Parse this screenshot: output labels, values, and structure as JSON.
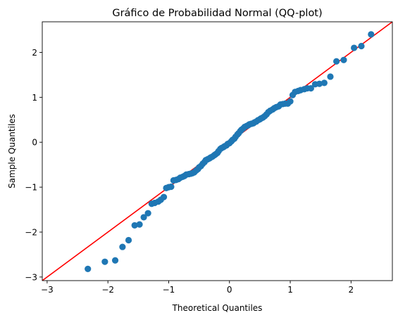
{
  "chart_data": {
    "type": "scatter",
    "title": "Gráfico de Probabilidad Normal (QQ-plot)",
    "xlabel": "Theoretical Quantiles",
    "ylabel": "Sample Quantiles",
    "xlim": [
      -3.08,
      2.68
    ],
    "ylim": [
      -3.08,
      2.68
    ],
    "xticks": [
      -3,
      -2,
      -1,
      0,
      1,
      2
    ],
    "yticks": [
      -3,
      -2,
      -1,
      0,
      1,
      2
    ],
    "grid": false,
    "series": [
      {
        "color": "#1f77b4",
        "points": [
          [
            -2.33,
            -2.82
          ],
          [
            -2.05,
            -2.66
          ],
          [
            -1.88,
            -2.63
          ],
          [
            -1.76,
            -2.33
          ],
          [
            -1.66,
            -2.18
          ],
          [
            -1.56,
            -1.85
          ],
          [
            -1.48,
            -1.83
          ],
          [
            -1.41,
            -1.67
          ],
          [
            -1.34,
            -1.58
          ],
          [
            -1.28,
            -1.37
          ],
          [
            -1.23,
            -1.35
          ],
          [
            -1.17,
            -1.32
          ],
          [
            -1.13,
            -1.28
          ],
          [
            -1.08,
            -1.22
          ],
          [
            -1.04,
            -1.02
          ],
          [
            -1.0,
            -1.0
          ],
          [
            -0.96,
            -0.99
          ],
          [
            -0.92,
            -0.85
          ],
          [
            -0.88,
            -0.84
          ],
          [
            -0.84,
            -0.82
          ],
          [
            -0.81,
            -0.79
          ],
          [
            -0.77,
            -0.77
          ],
          [
            -0.74,
            -0.75
          ],
          [
            -0.71,
            -0.72
          ],
          [
            -0.67,
            -0.71
          ],
          [
            -0.64,
            -0.7
          ],
          [
            -0.61,
            -0.69
          ],
          [
            -0.58,
            -0.67
          ],
          [
            -0.55,
            -0.63
          ],
          [
            -0.52,
            -0.6
          ],
          [
            -0.5,
            -0.56
          ],
          [
            -0.47,
            -0.53
          ],
          [
            -0.44,
            -0.48
          ],
          [
            -0.41,
            -0.44
          ],
          [
            -0.39,
            -0.4
          ],
          [
            -0.36,
            -0.38
          ],
          [
            -0.33,
            -0.36
          ],
          [
            -0.31,
            -0.34
          ],
          [
            -0.28,
            -0.32
          ],
          [
            -0.25,
            -0.29
          ],
          [
            -0.23,
            -0.27
          ],
          [
            -0.2,
            -0.24
          ],
          [
            -0.18,
            -0.2
          ],
          [
            -0.15,
            -0.15
          ],
          [
            -0.13,
            -0.13
          ],
          [
            -0.1,
            -0.11
          ],
          [
            -0.08,
            -0.09
          ],
          [
            -0.05,
            -0.07
          ],
          [
            -0.03,
            -0.04
          ],
          [
            0.0,
            -0.02
          ],
          [
            0.03,
            0.02
          ],
          [
            0.05,
            0.05
          ],
          [
            0.08,
            0.08
          ],
          [
            0.1,
            0.12
          ],
          [
            0.13,
            0.17
          ],
          [
            0.15,
            0.2
          ],
          [
            0.18,
            0.25
          ],
          [
            0.2,
            0.28
          ],
          [
            0.23,
            0.31
          ],
          [
            0.25,
            0.34
          ],
          [
            0.28,
            0.36
          ],
          [
            0.31,
            0.38
          ],
          [
            0.33,
            0.4
          ],
          [
            0.36,
            0.41
          ],
          [
            0.39,
            0.42
          ],
          [
            0.41,
            0.44
          ],
          [
            0.44,
            0.46
          ],
          [
            0.47,
            0.49
          ],
          [
            0.5,
            0.51
          ],
          [
            0.52,
            0.53
          ],
          [
            0.55,
            0.55
          ],
          [
            0.58,
            0.58
          ],
          [
            0.61,
            0.62
          ],
          [
            0.64,
            0.67
          ],
          [
            0.67,
            0.7
          ],
          [
            0.71,
            0.73
          ],
          [
            0.74,
            0.76
          ],
          [
            0.77,
            0.78
          ],
          [
            0.81,
            0.8
          ],
          [
            0.84,
            0.84
          ],
          [
            0.88,
            0.85
          ],
          [
            0.92,
            0.86
          ],
          [
            0.96,
            0.86
          ],
          [
            1.0,
            0.91
          ],
          [
            1.04,
            1.05
          ],
          [
            1.08,
            1.12
          ],
          [
            1.13,
            1.14
          ],
          [
            1.17,
            1.16
          ],
          [
            1.23,
            1.18
          ],
          [
            1.28,
            1.2
          ],
          [
            1.34,
            1.2
          ],
          [
            1.41,
            1.29
          ],
          [
            1.48,
            1.3
          ],
          [
            1.56,
            1.32
          ],
          [
            1.66,
            1.46
          ],
          [
            1.76,
            1.8
          ],
          [
            1.88,
            1.83
          ],
          [
            2.05,
            2.1
          ],
          [
            2.17,
            2.14
          ],
          [
            2.33,
            2.4
          ]
        ]
      }
    ],
    "reference_line": {
      "type": "45-degree",
      "color": "#ff0000"
    }
  }
}
